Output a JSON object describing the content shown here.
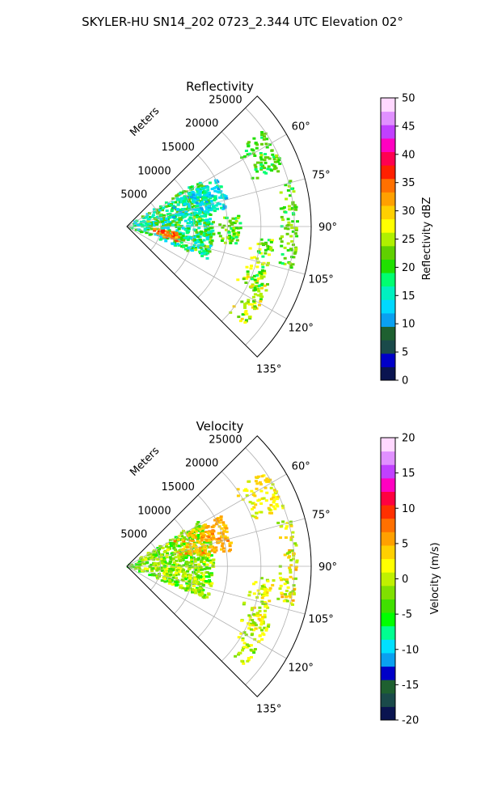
{
  "figure": {
    "title": "SKYLER-HU  SN14_202  0723_2.344 UTC Elevation 02°"
  },
  "chart_data": [
    {
      "type": "heatmap",
      "title": "Reflectivity",
      "projection": "polar-sector",
      "azimuth_ticks": [
        "60°",
        "75°",
        "90°",
        "105°",
        "120°",
        "135°"
      ],
      "azimuth_range_deg": [
        45,
        135
      ],
      "range_label": "Meters",
      "range_ticks": [
        5000,
        10000,
        15000,
        20000,
        25000
      ],
      "range_max": 27500,
      "grid": true,
      "colorbar": {
        "label": "Reflectivity dBZ",
        "min": 0,
        "max": 50,
        "ticks": [
          0,
          5,
          10,
          15,
          20,
          25,
          30,
          35,
          40,
          45,
          50
        ]
      },
      "field": "reflectivity",
      "echo_regions": [
        {
          "az": [
            58,
            112
          ],
          "r": [
            0,
            13000
          ],
          "value": [
            12,
            24
          ]
        },
        {
          "az": [
            95,
            106
          ],
          "r": [
            3500,
            8000
          ],
          "value": [
            30,
            38
          ]
        },
        {
          "az": [
            62,
            80
          ],
          "r": [
            6000,
            15500
          ],
          "value": [
            10,
            18
          ]
        },
        {
          "az": [
            84,
            100
          ],
          "r": [
            13000,
            17000
          ],
          "value": [
            18,
            26
          ]
        },
        {
          "az": [
            95,
            117
          ],
          "r": [
            18000,
            22000
          ],
          "value": [
            18,
            28
          ]
        },
        {
          "az": [
            74,
            104
          ],
          "r": [
            22500,
            25500
          ],
          "value": [
            18,
            26
          ]
        },
        {
          "az": [
            55,
            70
          ],
          "r": [
            19000,
            25000
          ],
          "value": [
            18,
            24
          ]
        },
        {
          "az": [
            112,
            130
          ],
          "r": [
            19500,
            23000
          ],
          "value": [
            20,
            30
          ]
        }
      ]
    },
    {
      "type": "heatmap",
      "title": "Velocity",
      "projection": "polar-sector",
      "azimuth_ticks": [
        "60°",
        "75°",
        "90°",
        "105°",
        "120°",
        "135°"
      ],
      "azimuth_range_deg": [
        45,
        135
      ],
      "range_label": "Meters",
      "range_ticks": [
        5000,
        10000,
        15000,
        20000,
        25000
      ],
      "range_max": 27500,
      "grid": true,
      "colorbar": {
        "label": "Velocity (m/s)",
        "min": -20,
        "max": 20,
        "ticks": [
          -20,
          -15,
          -10,
          -5,
          0,
          5,
          10,
          15,
          20
        ]
      },
      "field": "velocity",
      "echo_regions": [
        {
          "az": [
            58,
            112
          ],
          "r": [
            0,
            13000
          ],
          "value": [
            -6,
            2
          ]
        },
        {
          "az": [
            62,
            82
          ],
          "r": [
            7000,
            16000
          ],
          "value": [
            3,
            7
          ]
        },
        {
          "az": [
            95,
            117
          ],
          "r": [
            18000,
            22000
          ],
          "value": [
            -2,
            4
          ]
        },
        {
          "az": [
            74,
            104
          ],
          "r": [
            22500,
            25500
          ],
          "value": [
            -3,
            6
          ]
        },
        {
          "az": [
            55,
            70
          ],
          "r": [
            19000,
            25000
          ],
          "value": [
            0,
            4
          ]
        },
        {
          "az": [
            112,
            130
          ],
          "r": [
            19500,
            23000
          ],
          "value": [
            -3,
            3
          ]
        }
      ]
    }
  ],
  "colors": {
    "grid": "#b0b0b0",
    "axis": "#000000",
    "reflectivity_stops": [
      "#0a1450",
      "#0000c8",
      "#1a4a4a",
      "#1e6030",
      "#0aa0f0",
      "#00d8ff",
      "#00f0c0",
      "#00ff70",
      "#20e000",
      "#60d000",
      "#b0f000",
      "#ffff00",
      "#ffd000",
      "#ffa000",
      "#ff7000",
      "#ff2000",
      "#ff0050",
      "#ff00c0",
      "#c040ff",
      "#e090ff",
      "#ffd8ff"
    ],
    "velocity_stops": [
      "#0a1450",
      "#1a4a4a",
      "#1e6030",
      "#0000c8",
      "#0aa0f0",
      "#00e0ff",
      "#00ff90",
      "#00ff00",
      "#40e000",
      "#80e000",
      "#c0f000",
      "#ffff00",
      "#ffd000",
      "#ffa000",
      "#ff7000",
      "#ff3000",
      "#ff0040",
      "#ff00c0",
      "#c040ff",
      "#e090ff",
      "#ffd8ff"
    ]
  }
}
